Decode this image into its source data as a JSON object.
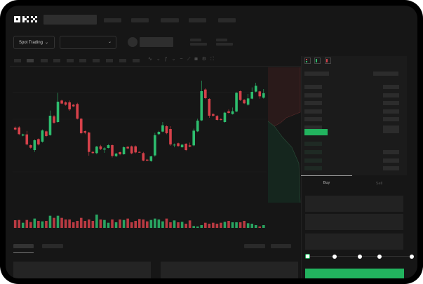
{
  "header": {
    "logo": "OKX"
  },
  "toolbar": {
    "market_select": "Spot Trading",
    "pair_select": ""
  },
  "trade": {
    "tabs": [
      "Buy",
      "Sell"
    ],
    "active_tab": "Buy"
  },
  "colors": {
    "up": "#2dbd6e",
    "down": "#d6414a",
    "bg": "#161616",
    "accent": "#22b35e"
  },
  "icons": [
    "chevron-down-icon",
    "line-icon",
    "ruler-icon",
    "camera-icon",
    "gear-icon",
    "fullscreen-icon",
    "orderbook-both-icon",
    "orderbook-buy-icon",
    "orderbook-sell-icon"
  ],
  "chart_data": {
    "type": "candlestick",
    "candles": [
      [
        184,
        176,
        189,
        172
      ],
      [
        185,
        156,
        190,
        152
      ],
      [
        150,
        155,
        158,
        147
      ],
      [
        155,
        112,
        170,
        108
      ],
      [
        109,
        98,
        112,
        94
      ],
      [
        88,
        130,
        134,
        80
      ],
      [
        135,
        112,
        138,
        108
      ],
      [
        124,
        172,
        176,
        120
      ],
      [
        168,
        148,
        172,
        144
      ],
      [
        152,
        235,
        257,
        150
      ],
      [
        232,
        205,
        238,
        200
      ],
      [
        208,
        295,
        333,
        205
      ],
      [
        300,
        287,
        304,
        284
      ],
      [
        292,
        282,
        296,
        278
      ],
      [
        292,
        262,
        300,
        256
      ],
      [
        282,
        275,
        285,
        272
      ],
      [
        285,
        222,
        290,
        219
      ],
      [
        222,
        160,
        226,
        156
      ],
      [
        169,
        162,
        172,
        156
      ],
      [
        163,
        80,
        166,
        64
      ],
      [
        80,
        75,
        84,
        72
      ],
      [
        75,
        103,
        106,
        70
      ],
      [
        104,
        92,
        110,
        88
      ],
      [
        90,
        95,
        100,
        76
      ],
      [
        97,
        109,
        113,
        95
      ],
      [
        109,
        63,
        112,
        56
      ],
      [
        62,
        73,
        76,
        58
      ],
      [
        79,
        70,
        82,
        66
      ],
      [
        70,
        100,
        104,
        68
      ],
      [
        102,
        95,
        105,
        92
      ],
      [
        104,
        74,
        107,
        70
      ],
      [
        104,
        78,
        108,
        74
      ],
      [
        80,
        78,
        82,
        76
      ],
      [
        75,
        43,
        80,
        40
      ],
      [
        47,
        43,
        50,
        40
      ],
      [
        41,
        61,
        64,
        38
      ],
      [
        65,
        152,
        162,
        60
      ],
      [
        156,
        166,
        170,
        152
      ],
      [
        167,
        194,
        208,
        164
      ],
      [
        190,
        160,
        194,
        156
      ],
      [
        178,
        112,
        190,
        106
      ],
      [
        108,
        111,
        116,
        100
      ],
      [
        117,
        105,
        120,
        102
      ],
      [
        100,
        111,
        114,
        98
      ],
      [
        115,
        88,
        118,
        84
      ],
      [
        108,
        103,
        120,
        100
      ],
      [
        108,
        171,
        180,
        104
      ],
      [
        168,
        214,
        222,
        165
      ],
      [
        215,
        340,
        385,
        212
      ],
      [
        347,
        310,
        352,
        306
      ],
      [
        307,
        235,
        310,
        226
      ],
      [
        242,
        235,
        246,
        230
      ],
      [
        234,
        217,
        238,
        214
      ],
      [
        220,
        217,
        226,
        214
      ],
      [
        208,
        248,
        252,
        205
      ],
      [
        254,
        247,
        262,
        244
      ],
      [
        242,
        254,
        270,
        240
      ],
      [
        253,
        333,
        336,
        250
      ],
      [
        340,
        302,
        343,
        298
      ],
      [
        303,
        288,
        306,
        285
      ],
      [
        282,
        309,
        328,
        278
      ],
      [
        308,
        337,
        356,
        305
      ],
      [
        338,
        363,
        376,
        335
      ],
      [
        339,
        318,
        342,
        308
      ],
      [
        312,
        331,
        349,
        308
      ]
    ],
    "volume": [
      33,
      34,
      22,
      34,
      25,
      40,
      30,
      28,
      30,
      52,
      43,
      52,
      43,
      36,
      36,
      24,
      30,
      43,
      30,
      36,
      30,
      57,
      36,
      34,
      22,
      36,
      24,
      36,
      34,
      40,
      24,
      30,
      38,
      36,
      28,
      34,
      40,
      36,
      28,
      40,
      24,
      32,
      24,
      26,
      18,
      32,
      8,
      6,
      12,
      22,
      18,
      22,
      18,
      22,
      26,
      30,
      24,
      24,
      24,
      30,
      20,
      18,
      12,
      6,
      12
    ]
  }
}
